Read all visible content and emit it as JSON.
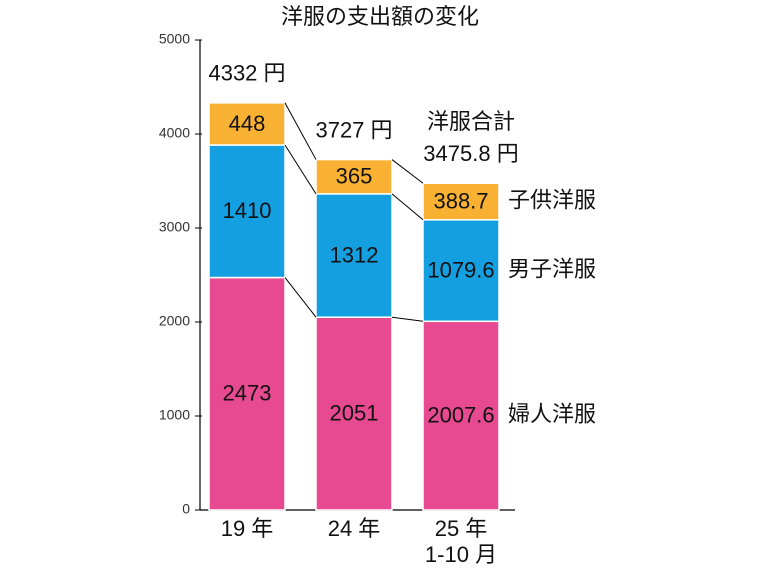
{
  "chart_data": {
    "type": "stacked-bar",
    "title": "洋服の支出額の変化",
    "categories": [
      "19 年",
      "24 年",
      "25 年"
    ],
    "category_sublabels": [
      null,
      null,
      "1-10 月"
    ],
    "series": [
      {
        "name": "婦人洋服",
        "color": "#e84a91",
        "values": [
          2473,
          2051,
          2007.6
        ]
      },
      {
        "name": "男子洋服",
        "color": "#139fe0",
        "values": [
          1410,
          1312,
          1079.6
        ]
      },
      {
        "name": "子供洋服",
        "color": "#f8b133",
        "values": [
          448,
          365,
          388.7
        ]
      }
    ],
    "totals": [
      4332,
      3727,
      3475.8
    ],
    "total_labels": [
      "4332 円",
      "3727 円",
      "3475.8 円"
    ],
    "total_caption": "洋服合計",
    "ylim": [
      0,
      5000
    ],
    "yticks": [
      0,
      1000,
      2000,
      3000,
      4000,
      5000
    ]
  }
}
